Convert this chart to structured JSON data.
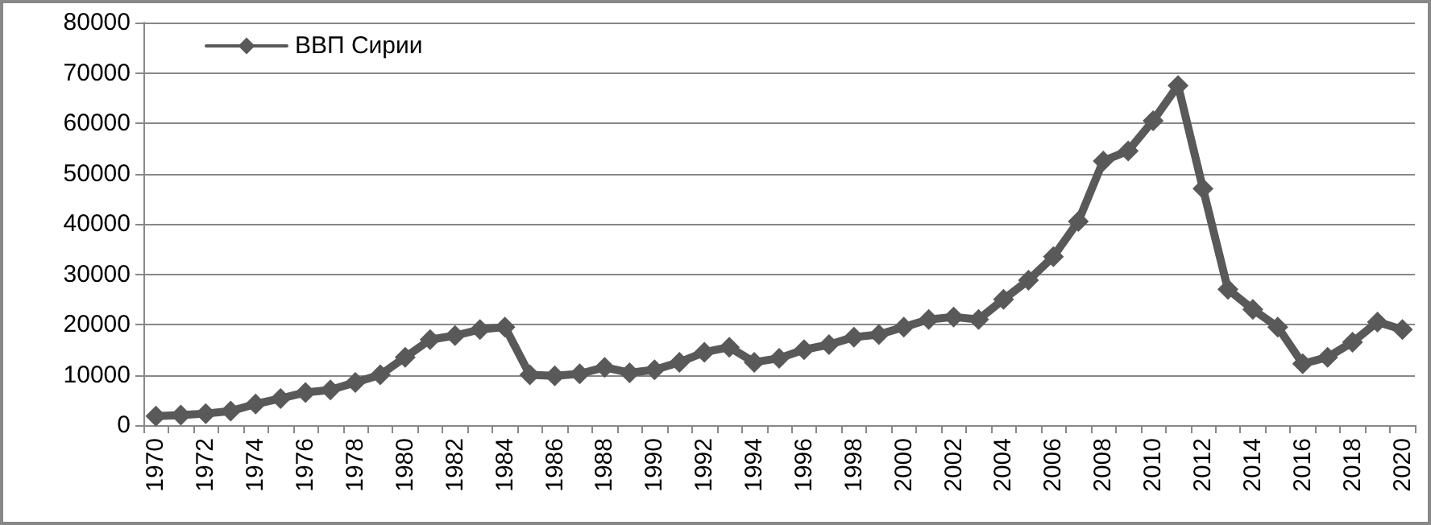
{
  "chart_data": {
    "type": "line",
    "categories": [
      "1970",
      null,
      "1972",
      null,
      "1974",
      null,
      "1976",
      null,
      "1978",
      null,
      "1980",
      null,
      "1982",
      null,
      "1984",
      null,
      "1986",
      null,
      "1988",
      null,
      "1990",
      null,
      "1992",
      null,
      "1994",
      null,
      "1996",
      null,
      "1998",
      null,
      "2000",
      null,
      "2002",
      null,
      "2004",
      null,
      "2006",
      null,
      "2008",
      null,
      "2010",
      null,
      "2012",
      null,
      "2014",
      null,
      "2016",
      null,
      "2018",
      null,
      "2020"
    ],
    "series": [
      {
        "name": "ВВП Сирии",
        "color": "#595959",
        "values": [
          1800,
          2000,
          2300,
          2800,
          4200,
          5300,
          6500,
          7000,
          8500,
          10000,
          13500,
          17000,
          17800,
          19000,
          19500,
          10000,
          9800,
          10200,
          11500,
          10400,
          11000,
          12500,
          14500,
          15500,
          12500,
          13300,
          15000,
          16000,
          17500,
          18000,
          19500,
          21000,
          21500,
          21000,
          25000,
          28800,
          33500,
          40500,
          52500,
          54500,
          60500,
          67500,
          47000,
          27000,
          23000,
          19500,
          12200,
          13500,
          16500,
          20500,
          19000
        ]
      }
    ],
    "ylim": [
      0,
      80000
    ],
    "yticks": [
      0,
      10000,
      20000,
      30000,
      40000,
      50000,
      60000,
      70000,
      80000
    ],
    "grid": "y",
    "legend": "top left",
    "marker": "diamond",
    "line_style": "solid"
  }
}
